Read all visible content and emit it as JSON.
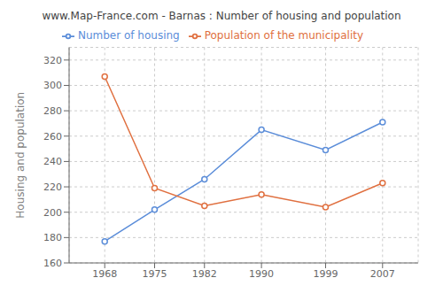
{
  "chart_data": {
    "type": "line",
    "title": "www.Map-France.com - Barnas : Number of housing and population",
    "ylabel": "Housing and population",
    "x": [
      1968,
      1975,
      1982,
      1990,
      1999,
      2007
    ],
    "series": [
      {
        "name": "Number of housing",
        "color": "#5b8dd9",
        "values": [
          177,
          202,
          226,
          265,
          249,
          271
        ]
      },
      {
        "name": "Population of the municipality",
        "color": "#e07040",
        "values": [
          307,
          219,
          205,
          214,
          204,
          223
        ]
      }
    ],
    "xlim": [
      1963,
      2012
    ],
    "xticks": [
      1968,
      1975,
      1982,
      1990,
      1999,
      2007
    ],
    "ylim": [
      160,
      330
    ],
    "yticks": [
      160,
      180,
      200,
      220,
      240,
      260,
      280,
      300,
      320
    ],
    "grid": true,
    "legend": "top",
    "marker": "circle"
  }
}
